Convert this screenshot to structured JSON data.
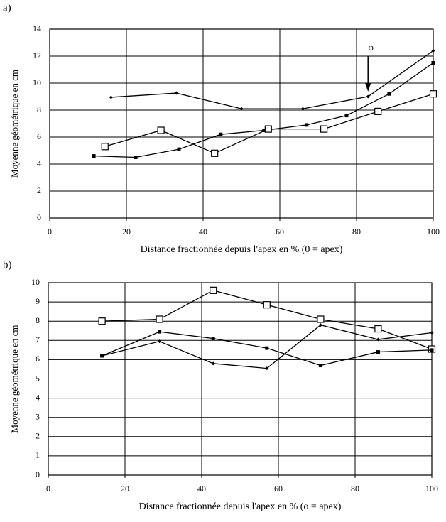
{
  "chart_data": [
    {
      "type": "line",
      "label": "a)",
      "xlabel": "Distance fractionnée depuis l'apex en % (0 = apex)",
      "ylabel": "Moyenne géométrique en cm",
      "xlim": [
        0,
        100
      ],
      "xticks": [
        0,
        20,
        40,
        60,
        80,
        100
      ],
      "ylim": [
        0,
        14
      ],
      "yticks": [
        0,
        2,
        4,
        6,
        8,
        10,
        12,
        14
      ],
      "grid": true,
      "annotations": [
        {
          "text": "φ",
          "x": 83
        }
      ],
      "series": [
        {
          "marker": "diamond",
          "color": "#000000",
          "x": [
            16,
            33,
            50,
            66,
            83,
            100
          ],
          "values": [
            8.95,
            9.26,
            8.1,
            8.1,
            9.0,
            12.4
          ]
        },
        {
          "marker": "square-filled",
          "color": "#000000",
          "x": [
            11.5,
            22.4,
            33.7,
            44.6,
            55.9,
            67,
            77.4,
            88.5,
            100
          ],
          "values": [
            4.6,
            4.5,
            5.1,
            6.2,
            6.5,
            6.9,
            7.6,
            9.2,
            11.5
          ]
        },
        {
          "marker": "square-open",
          "color": "#000000",
          "x": [
            14.4,
            29,
            43,
            57,
            71.5,
            85.6,
            100
          ],
          "values": [
            5.3,
            6.5,
            4.8,
            6.6,
            6.6,
            7.9,
            9.2
          ]
        }
      ]
    },
    {
      "type": "line",
      "label": "b)",
      "xlabel": "Distance fractionnée depuis l'apex en %  (o = apex)",
      "ylabel": "Moyenne géométrique en cm",
      "xlim": [
        0,
        100
      ],
      "xticks": [
        0,
        20,
        40,
        60,
        80,
        100
      ],
      "ylim": [
        0,
        10
      ],
      "yticks": [
        0,
        1,
        2,
        3,
        4,
        5,
        6,
        7,
        8,
        9,
        10
      ],
      "grid": true,
      "series": [
        {
          "marker": "square-open",
          "color": "#000000",
          "x": [
            14,
            29,
            43,
            57,
            71,
            86,
            100
          ],
          "values": [
            8.0,
            8.1,
            9.6,
            8.85,
            8.1,
            7.6,
            6.55
          ]
        },
        {
          "marker": "square-filled",
          "color": "#000000",
          "x": [
            14,
            29,
            43,
            57,
            71,
            86,
            100
          ],
          "values": [
            6.2,
            7.45,
            7.1,
            6.6,
            5.7,
            6.4,
            6.5
          ]
        },
        {
          "marker": "diamond",
          "color": "#000000",
          "x": [
            14,
            29,
            43,
            57,
            71,
            86,
            100
          ],
          "values": [
            6.2,
            6.95,
            5.8,
            5.55,
            7.8,
            7.05,
            7.4
          ]
        }
      ]
    }
  ]
}
